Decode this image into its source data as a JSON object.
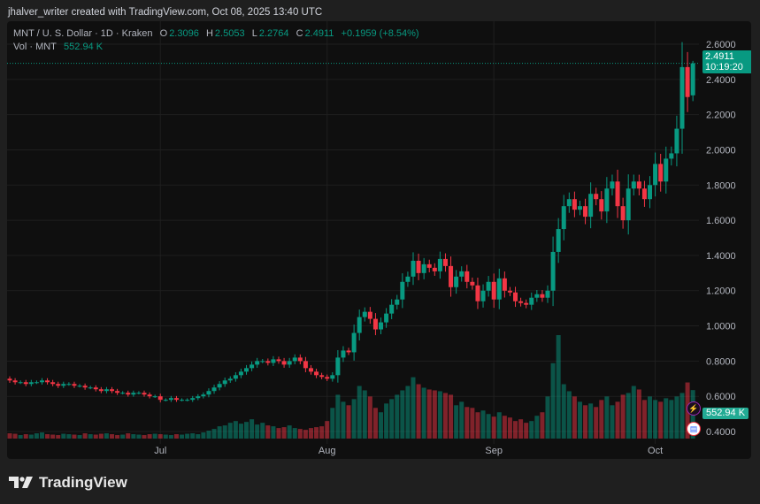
{
  "credit": "jhalver_writer created with TradingView.com, Oct 08, 2025 13:40 UTC",
  "legend": {
    "symbol": "MNT / U. S. Dollar · 1D · Kraken",
    "o_label": "O",
    "o": "2.3096",
    "h_label": "H",
    "h": "2.5053",
    "l_label": "L",
    "l": "2.2764",
    "c_label": "C",
    "c": "2.4911",
    "change": "+0.1959 (+8.54%)",
    "vol_label": "Vol · MNT",
    "vol": "552.94 K"
  },
  "price_tag": {
    "price": "2.4911",
    "countdown": "10:19:20"
  },
  "volume_tag": "552.94 K",
  "brand": "TradingView",
  "icons": [
    "lightning-icon",
    "us-flag-icon"
  ],
  "colors": {
    "up": "#089981",
    "down": "#f23645",
    "background": "#0f0f0f"
  },
  "chart_data": {
    "type": "candlestick",
    "price_axis": {
      "ticks": [
        "0.4000",
        "0.6000",
        "0.8000",
        "1.0000",
        "1.2000",
        "1.4000",
        "1.6000",
        "1.8000",
        "2.0000",
        "2.2000",
        "2.4000",
        "2.6000"
      ],
      "range": [
        0.36,
        2.7
      ]
    },
    "time_axis": {
      "ticks": [
        {
          "label": "Jul",
          "day": 28
        },
        {
          "label": "Aug",
          "day": 59
        },
        {
          "label": "Sep",
          "day": 90
        },
        {
          "label": "Oct",
          "day": 120
        }
      ]
    },
    "first_open": 0.7,
    "closes": [
      0.69,
      0.68,
      0.68,
      0.67,
      0.68,
      0.68,
      0.69,
      0.68,
      0.67,
      0.66,
      0.67,
      0.67,
      0.66,
      0.66,
      0.65,
      0.65,
      0.64,
      0.63,
      0.64,
      0.63,
      0.62,
      0.62,
      0.61,
      0.62,
      0.62,
      0.61,
      0.6,
      0.6,
      0.58,
      0.58,
      0.59,
      0.58,
      0.58,
      0.58,
      0.59,
      0.6,
      0.61,
      0.63,
      0.65,
      0.67,
      0.69,
      0.7,
      0.72,
      0.74,
      0.76,
      0.78,
      0.8,
      0.8,
      0.79,
      0.81,
      0.8,
      0.78,
      0.8,
      0.82,
      0.8,
      0.76,
      0.74,
      0.72,
      0.71,
      0.7,
      0.72,
      0.82,
      0.86,
      0.85,
      0.96,
      1.05,
      1.08,
      1.04,
      0.98,
      1.02,
      1.07,
      1.12,
      1.15,
      1.25,
      1.28,
      1.37,
      1.3,
      1.35,
      1.33,
      1.31,
      1.38,
      1.34,
      1.22,
      1.28,
      1.31,
      1.25,
      1.23,
      1.14,
      1.2,
      1.25,
      1.15,
      1.27,
      1.2,
      1.19,
      1.14,
      1.13,
      1.12,
      1.16,
      1.18,
      1.16,
      1.2,
      1.42,
      1.55,
      1.68,
      1.72,
      1.66,
      1.68,
      1.62,
      1.75,
      1.72,
      1.65,
      1.78,
      1.82,
      1.68,
      1.6,
      1.78,
      1.82,
      1.78,
      1.72,
      1.8,
      1.92,
      1.82,
      1.95,
      1.98,
      2.12,
      2.47,
      2.3,
      2.4911
    ],
    "last_candle": {
      "open": 2.3096,
      "high": 2.5053,
      "low": 2.2764,
      "close": 2.4911
    },
    "volume_k": [
      60,
      55,
      40,
      50,
      45,
      60,
      70,
      50,
      45,
      40,
      55,
      50,
      45,
      40,
      60,
      50,
      45,
      55,
      60,
      50,
      40,
      45,
      60,
      50,
      45,
      40,
      50,
      55,
      50,
      45,
      40,
      50,
      45,
      55,
      60,
      50,
      70,
      90,
      110,
      140,
      150,
      180,
      200,
      170,
      190,
      220,
      160,
      180,
      150,
      140,
      120,
      130,
      150,
      120,
      110,
      100,
      120,
      130,
      140,
      200,
      350,
      500,
      420,
      380,
      450,
      600,
      550,
      480,
      350,
      300,
      400,
      450,
      500,
      550,
      600,
      700,
      620,
      580,
      560,
      550,
      540,
      520,
      500,
      380,
      420,
      360,
      350,
      300,
      320,
      280,
      250,
      300,
      260,
      240,
      200,
      220,
      180,
      200,
      260,
      300,
      480,
      860,
      1180,
      620,
      540,
      480,
      420,
      380,
      400,
      360,
      440,
      480,
      380,
      420,
      500,
      520,
      600,
      560,
      440,
      480,
      440,
      420,
      460,
      440,
      480,
      520,
      640,
      552.94
    ]
  }
}
